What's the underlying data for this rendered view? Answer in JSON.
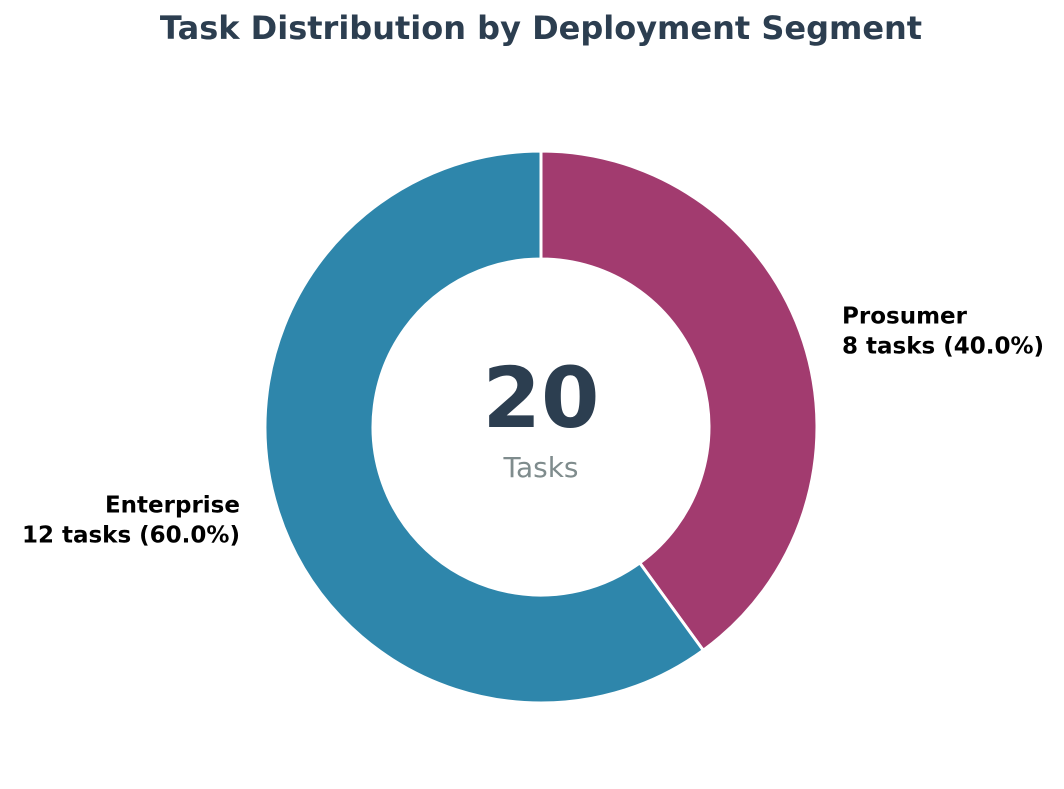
{
  "chart_data": {
    "type": "pie",
    "title": "Task Distribution by Deployment Segment",
    "center": {
      "total": "20",
      "caption": "Tasks"
    },
    "slices": [
      {
        "name": "Prosumer",
        "value": 8,
        "value_label": "8 tasks (40.0%)",
        "percent": 40.0,
        "color": "#A23B6F"
      },
      {
        "name": "Enterprise",
        "value": 12,
        "value_label": "12 tasks (60.0%)",
        "percent": 60.0,
        "color": "#2E86AB"
      }
    ],
    "start": "12 o'clock",
    "direction": "clockwise",
    "donut": true,
    "legend": "none"
  },
  "colors": {
    "title": "#2C3E50",
    "center_total": "#2C3E50",
    "center_caption": "#7F8C8D",
    "slice_border": "#FFFFFF"
  }
}
